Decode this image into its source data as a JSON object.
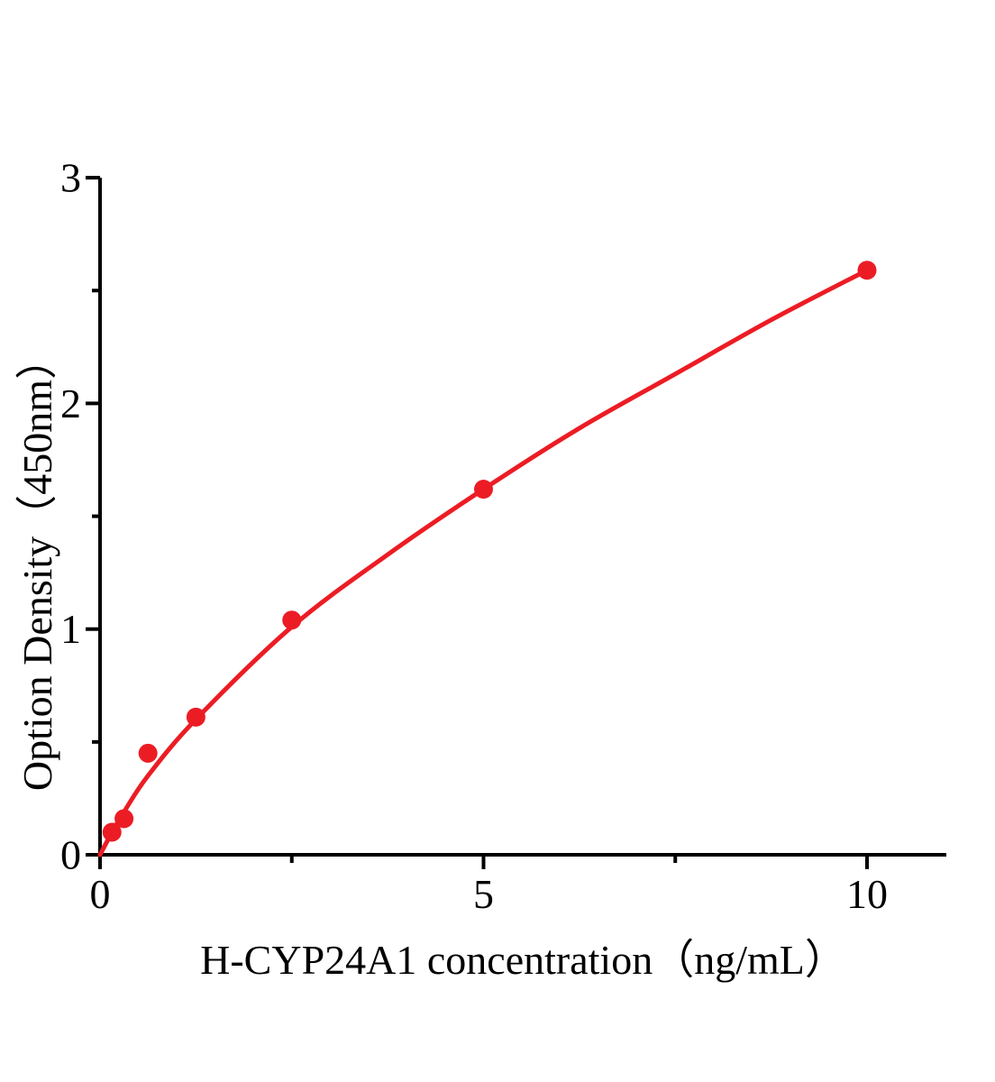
{
  "figure": {
    "background": "#ffffff"
  },
  "chart_data": {
    "type": "scatter",
    "title": "",
    "xlabel": "H-CYP24A1 concentration（ng/mL）",
    "ylabel": "Option Density（450nm）",
    "xlim": [
      0,
      11
    ],
    "ylim": [
      0,
      3
    ],
    "x_major_ticks": [
      0,
      5,
      10
    ],
    "x_minor_ticks": [
      2.5,
      7.5
    ],
    "y_major_ticks": [
      0,
      1,
      2,
      3
    ],
    "y_minor_ticks": [
      0.5,
      1.5,
      2.5
    ],
    "grid": false,
    "legend": "none",
    "marker_color": "#ec1c24",
    "line_color": "#ec1c24",
    "axis_color": "#000000",
    "points": [
      {
        "x": 0.156,
        "y": 0.1
      },
      {
        "x": 0.3125,
        "y": 0.16
      },
      {
        "x": 0.625,
        "y": 0.45
      },
      {
        "x": 1.25,
        "y": 0.61
      },
      {
        "x": 2.5,
        "y": 1.04
      },
      {
        "x": 5,
        "y": 1.62
      },
      {
        "x": 10,
        "y": 2.59
      }
    ],
    "fit_curve": [
      [
        0,
        0
      ],
      [
        0.156,
        0.1
      ],
      [
        0.3125,
        0.19
      ],
      [
        0.625,
        0.35
      ],
      [
        1.25,
        0.6
      ],
      [
        2.5,
        1.01
      ],
      [
        3.75,
        1.33
      ],
      [
        5,
        1.62
      ],
      [
        6.25,
        1.89
      ],
      [
        7.5,
        2.13
      ],
      [
        8.75,
        2.37
      ],
      [
        10,
        2.59
      ]
    ]
  }
}
